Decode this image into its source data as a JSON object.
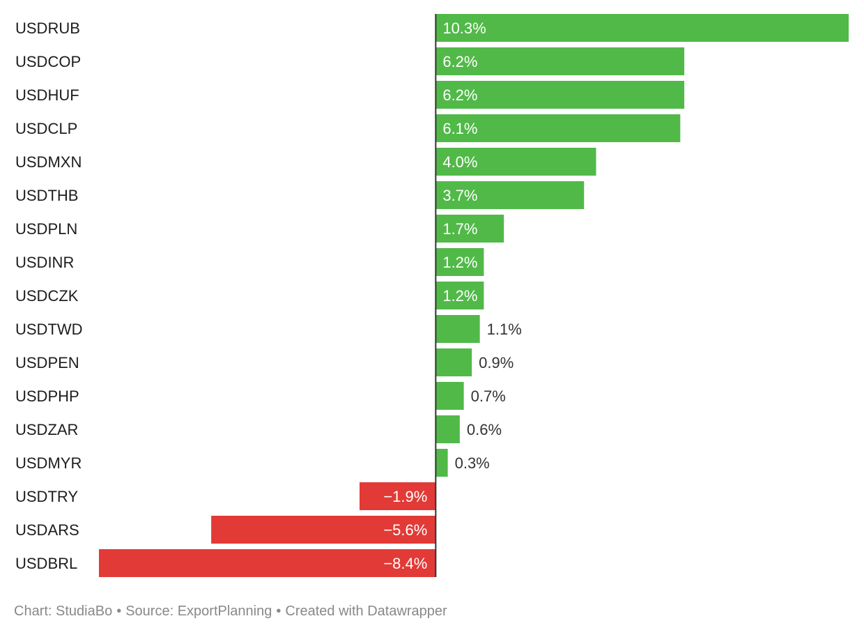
{
  "chart_data": {
    "type": "bar",
    "orientation": "horizontal",
    "title": "",
    "xlabel": "",
    "ylabel": "",
    "categories": [
      "USDRUB",
      "USDCOP",
      "USDHUF",
      "USDCLP",
      "USDMXN",
      "USDTHB",
      "USDPLN",
      "USDINR",
      "USDCZK",
      "USDTWD",
      "USDPEN",
      "USDPHP",
      "USDZAR",
      "USDMYR",
      "USDTRY",
      "USDARS",
      "USDBRL"
    ],
    "values": [
      10.3,
      6.2,
      6.2,
      6.1,
      4.0,
      3.7,
      1.7,
      1.2,
      1.2,
      1.1,
      0.9,
      0.7,
      0.6,
      0.3,
      -1.9,
      -5.6,
      -8.4
    ],
    "value_labels": [
      "10.3%",
      "6.2%",
      "6.2%",
      "6.1%",
      "4.0%",
      "3.7%",
      "1.7%",
      "1.2%",
      "1.2%",
      "1.1%",
      "0.9%",
      "0.7%",
      "0.6%",
      "0.3%",
      "−1.9%",
      "−5.6%",
      "−8.4%"
    ],
    "xlim": [
      -8.4,
      10.3
    ],
    "grid": false,
    "colors": {
      "positive": "#51b948",
      "negative": "#e23a36",
      "axis": "#333333"
    }
  },
  "footer": {
    "chart_credit": "Chart: StudiaBo",
    "separator": "•",
    "source": "Source: ExportPlanning",
    "created_with": "Created with Datawrapper"
  }
}
